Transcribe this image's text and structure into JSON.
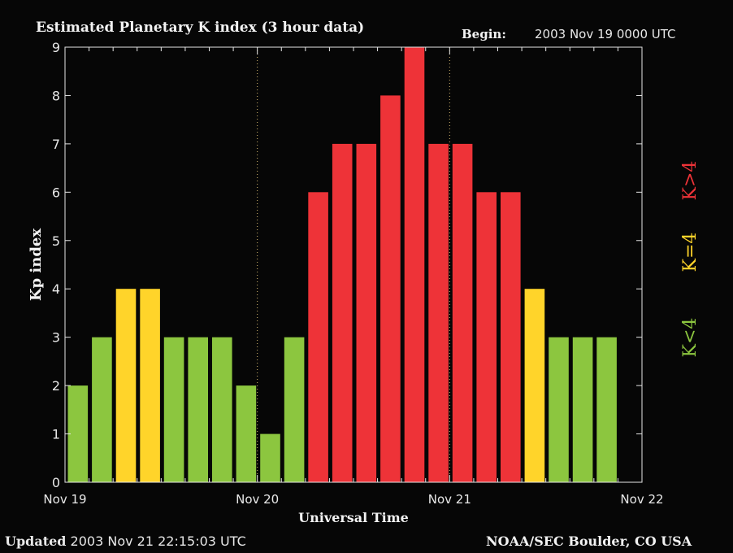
{
  "header": {
    "title": "Estimated Planetary K index (3 hour data)",
    "begin_label": "Begin:",
    "begin_value": "2003 Nov 19 0000 UTC"
  },
  "footer": {
    "updated_label": "Updated",
    "updated_value": "2003 Nov 21 22:15:03 UTC",
    "credit": "NOAA/SEC Boulder, CO USA"
  },
  "colors": {
    "background": "#060606",
    "below": "#8cc63f",
    "equal": "#ffd42a",
    "above": "#ee3338",
    "axis": "#e6e6e6",
    "day_divider": "#d4b870"
  },
  "chart_data": {
    "type": "bar",
    "title": "Estimated Planetary K index (3 hour data)",
    "xlabel": "Universal Time",
    "ylabel": "Kp index",
    "ylim": [
      0,
      9
    ],
    "yticks": [
      0,
      1,
      2,
      3,
      4,
      5,
      6,
      7,
      8,
      9
    ],
    "x_tick_labels": [
      "Nov 19",
      "Nov 20",
      "Nov 21",
      "Nov 22"
    ],
    "x_day_ticks": [
      0,
      8,
      16,
      24
    ],
    "grid": false,
    "legend": {
      "placement": "right",
      "orientation": "vertical",
      "entries": [
        {
          "label": "K<4",
          "color": "#8cc63f"
        },
        {
          "label": "K=4",
          "color": "#ffd42a"
        },
        {
          "label": "K>4",
          "color": "#ee3338"
        }
      ]
    },
    "series": [
      {
        "values": [
          2,
          3,
          4,
          4,
          3,
          3,
          3,
          2,
          1,
          3,
          6,
          7,
          7,
          8,
          9,
          7,
          7,
          6,
          6,
          4,
          3,
          3,
          3
        ]
      }
    ]
  }
}
